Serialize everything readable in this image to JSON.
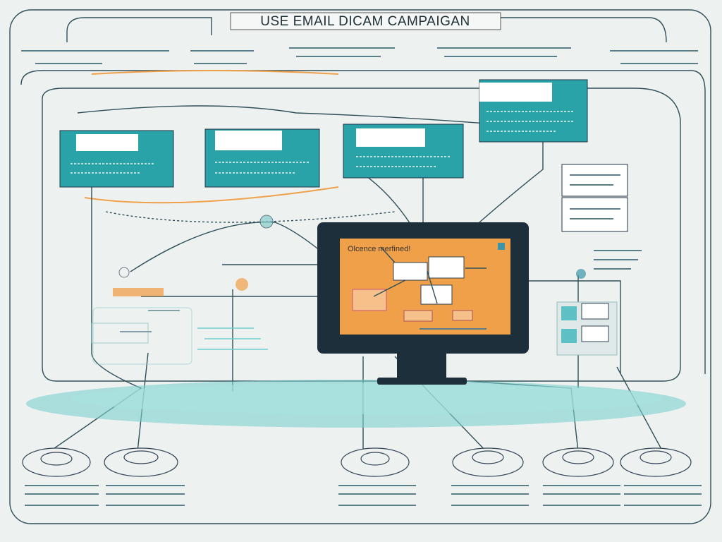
{
  "title": "USE EMAIL DICAM CAMPAIGAN",
  "monitor_label": "Olcence merfined!"
}
